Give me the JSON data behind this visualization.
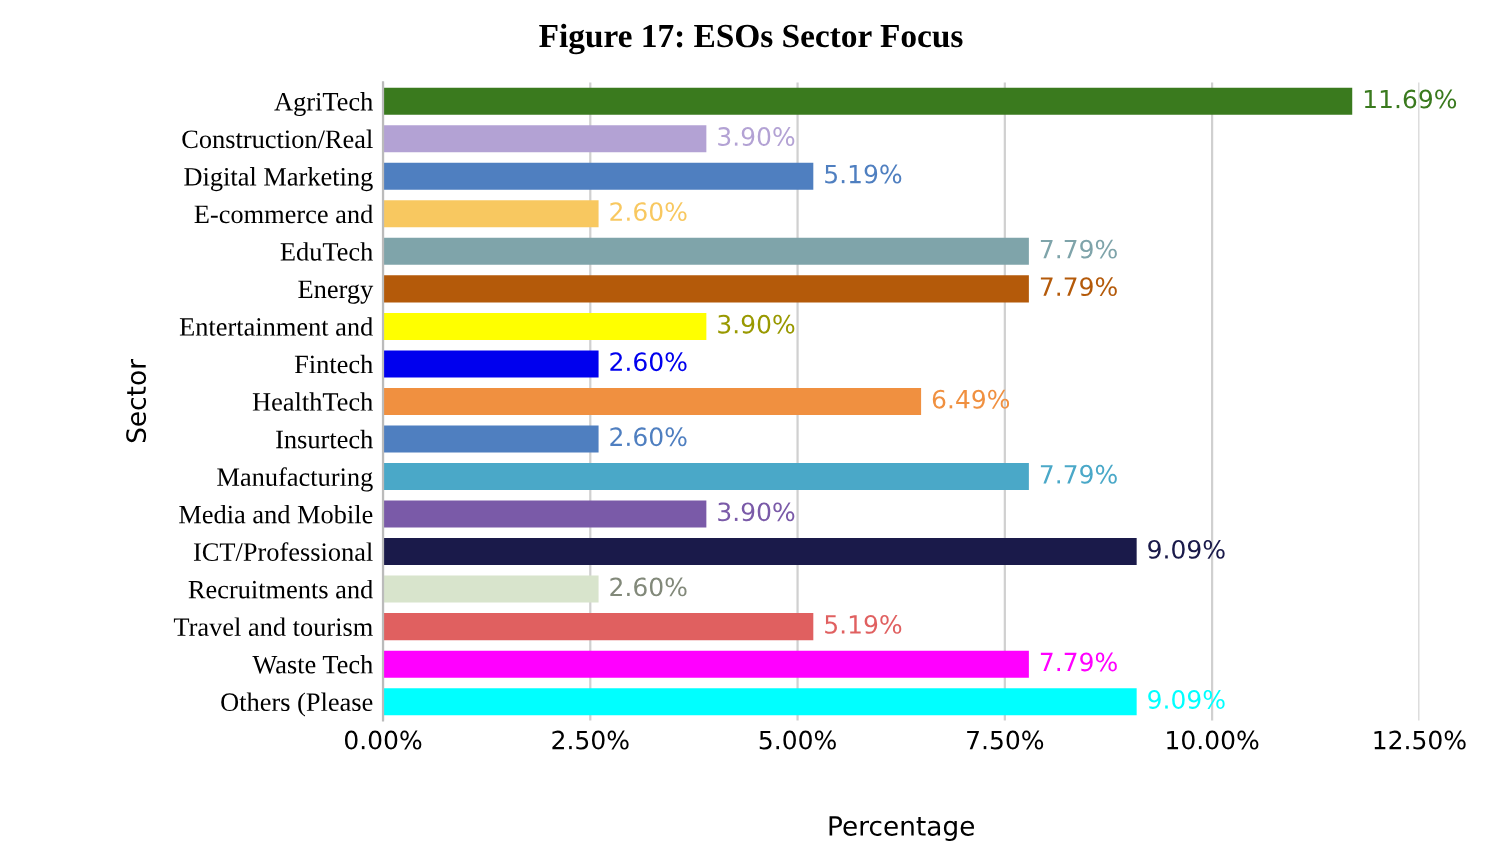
{
  "chart_data": {
    "type": "bar",
    "orientation": "horizontal",
    "title": "Figure 17: ESOs Sector Focus",
    "xlabel": "Percentage",
    "ylabel": "Sector",
    "categories": [
      "AgriTech",
      "Construction/Real",
      "Digital Marketing",
      "E-commerce and",
      "EduTech",
      "Energy",
      "Entertainment and",
      "Fintech",
      "HealthTech",
      "Insurtech",
      "Manufacturing",
      "Media and Mobile",
      "ICT/Professional",
      "Recruitments and",
      "Travel and tourism",
      "Waste Tech",
      "Others (Please"
    ],
    "values": [
      11.69,
      3.9,
      5.19,
      2.6,
      7.79,
      7.79,
      3.9,
      2.6,
      6.49,
      2.6,
      7.79,
      3.9,
      9.09,
      2.6,
      5.19,
      7.79,
      9.09
    ],
    "value_labels": [
      "11.69%",
      "3.90%",
      "5.19%",
      "2.60%",
      "7.79%",
      "7.79%",
      "3.90%",
      "2.60%",
      "6.49%",
      "2.60%",
      "7.79%",
      "3.90%",
      "9.09%",
      "2.60%",
      "5.19%",
      "7.79%",
      "9.09%"
    ],
    "colors": [
      "#3a7a1e",
      "#b3a2d4",
      "#4f7fc0",
      "#f8c860",
      "#7fa4aa",
      "#b45a0a",
      "#ffff00",
      "#0000ee",
      "#f09040",
      "#4f7fc0",
      "#4aa8c8",
      "#7a5aa8",
      "#1a1a4a",
      "#d8e4cc",
      "#e06060",
      "#ff00ff",
      "#00ffff"
    ],
    "xlim": [
      0,
      12.5
    ],
    "xticks": [
      {
        "value": 0,
        "label": "0.00%"
      },
      {
        "value": 2.5,
        "label": "2.50%"
      },
      {
        "value": 5,
        "label": "5.00%"
      },
      {
        "value": 7.5,
        "label": "7.50%"
      },
      {
        "value": 10,
        "label": "10.00%"
      },
      {
        "value": 12.5,
        "label": "12.50%"
      }
    ],
    "grid": "x"
  }
}
